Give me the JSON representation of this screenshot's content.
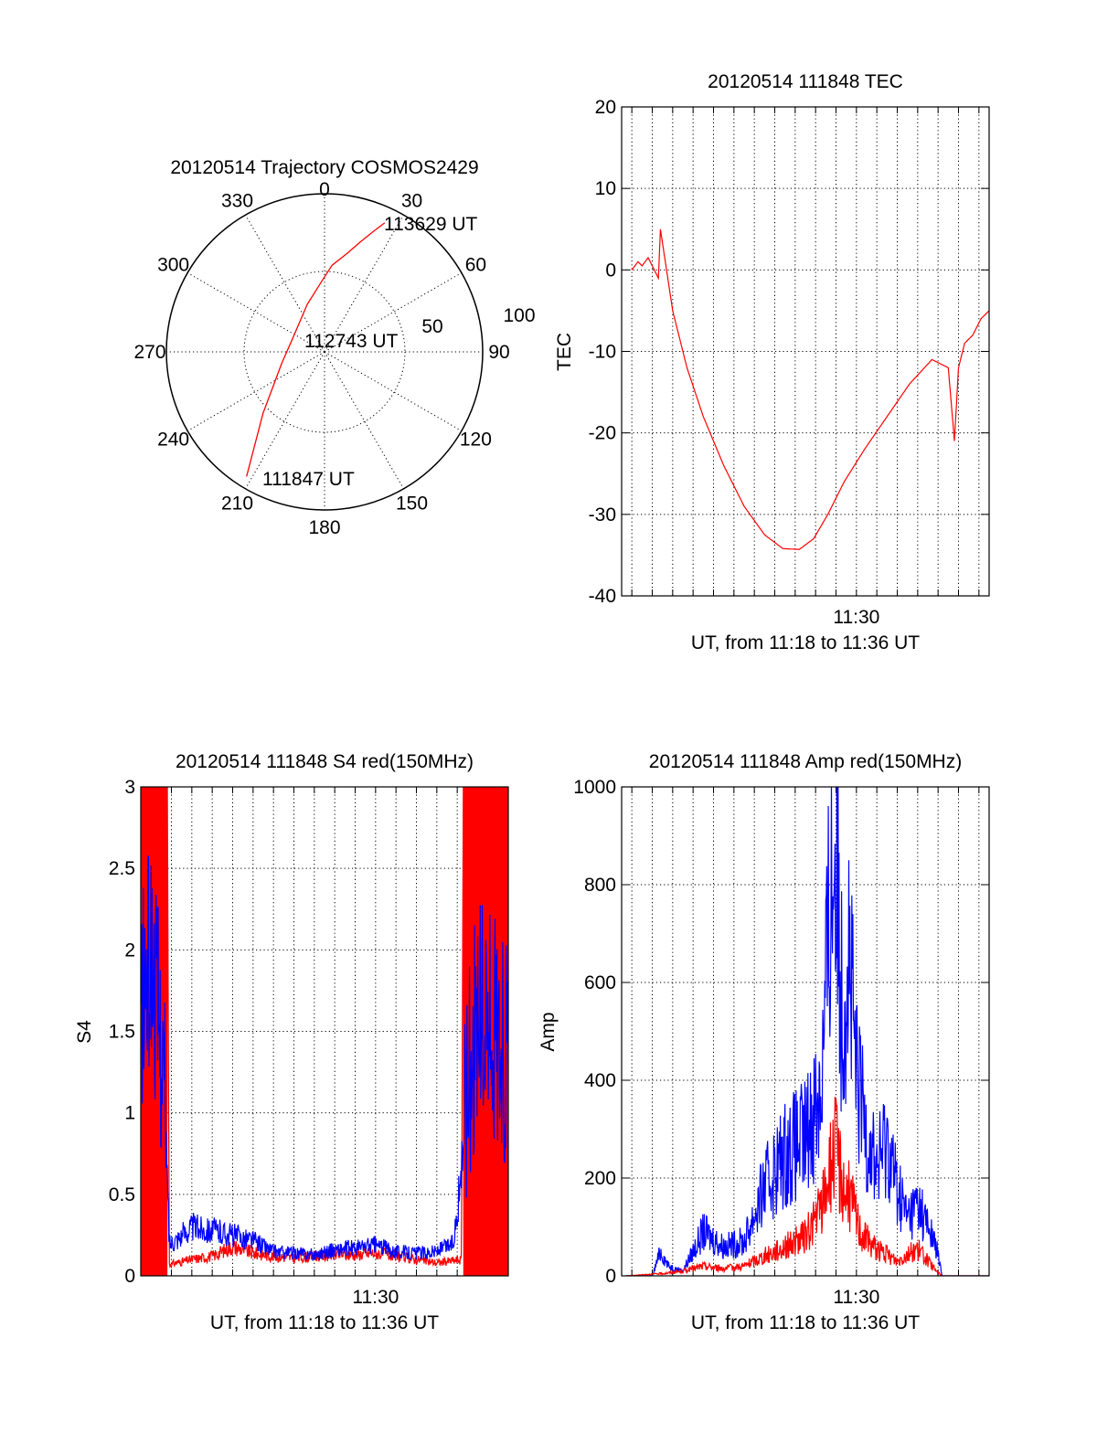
{
  "colors": {
    "red": "#ff0000",
    "blue": "#0000ff",
    "axis": "#000000"
  },
  "chart_data": [
    {
      "id": "trajectory",
      "type": "polar",
      "title": "20120514 Trajectory COSMOS2429",
      "angle_labels": [
        "0",
        "30",
        "60",
        "90",
        "120",
        "150",
        "180",
        "210",
        "240",
        "270",
        "300",
        "330"
      ],
      "angle_values": [
        0,
        30,
        60,
        90,
        120,
        150,
        180,
        210,
        240,
        270,
        300,
        330
      ],
      "radial_labels": [
        "50",
        "100"
      ],
      "radial_values": [
        50,
        100
      ],
      "point_labels": [
        "113629 UT",
        "112743 UT",
        "111847 UT"
      ],
      "series": [
        {
          "color": "#ff0000",
          "azimuth": [
            25,
            22,
            18,
            13,
            5,
            358,
            340,
            300,
            255,
            225,
            212
          ],
          "radius": [
            90,
            82,
            73,
            64,
            55,
            45,
            32,
            22,
            28,
            55,
            93
          ]
        }
      ]
    },
    {
      "id": "tec",
      "type": "line",
      "title": "20120514 111848 TEC",
      "xlabel": "UT, from 11:18 to 11:36 UT",
      "ylabel": "TEC",
      "x_tick_label": "11:30",
      "x_tick_value": 690,
      "xlim": [
        678.5,
        696.5
      ],
      "ylim": [
        -40,
        20
      ],
      "yticks": [
        "20",
        "10",
        "0",
        "-10",
        "-20",
        "-30",
        "-40"
      ],
      "ytick_values": [
        20,
        10,
        0,
        -10,
        -20,
        -30,
        -40
      ],
      "series": [
        {
          "color": "#ff0000",
          "x": [
            679.0,
            679.3,
            679.5,
            679.8,
            680.1,
            680.3,
            680.4,
            681.0,
            681.7,
            682.5,
            683.5,
            684.5,
            685.5,
            686.4,
            687.2,
            687.9,
            688.6,
            689.4,
            690.4,
            691.5,
            692.6,
            693.7,
            694.5,
            694.7,
            694.8,
            695.0,
            695.3,
            695.7,
            696.1,
            696.5
          ],
          "y": [
            0,
            1,
            0.5,
            1.5,
            0,
            -1,
            5,
            -5,
            -12,
            -18,
            -24,
            -29,
            -32.5,
            -34.2,
            -34.3,
            -33,
            -30,
            -26,
            -22,
            -18,
            -14,
            -11,
            -12,
            -18,
            -21,
            -12,
            -9,
            -8,
            -6,
            -5
          ]
        }
      ]
    },
    {
      "id": "s4",
      "type": "line",
      "title": "20120514 111848 S4 red(150MHz)",
      "xlabel": "UT, from 11:18 to 11:36 UT",
      "ylabel": "S4",
      "x_tick_label": "11:30",
      "x_tick_value": 690,
      "xlim": [
        678.5,
        696.5
      ],
      "ylim": [
        0,
        3
      ],
      "yticks": [
        "3",
        "2.5",
        "2",
        "1.5",
        "1",
        "0.5",
        "0"
      ],
      "ytick_values": [
        3,
        2.5,
        2,
        1.5,
        1,
        0.5,
        0
      ],
      "series": [
        {
          "color": "#ff0000",
          "x": [
            678.5,
            679.8,
            679.9,
            681,
            682,
            683,
            684,
            685,
            686,
            687,
            688,
            689,
            690,
            691,
            692,
            693,
            694.2,
            694.3,
            696.5
          ],
          "y": [
            3,
            3,
            0.07,
            0.1,
            0.12,
            0.18,
            0.14,
            0.12,
            0.11,
            0.12,
            0.13,
            0.13,
            0.14,
            0.12,
            0.1,
            0.08,
            0.1,
            3,
            3
          ]
        },
        {
          "color": "#0000ff",
          "x": [
            678.5,
            679.0,
            679.6,
            679.9,
            680.5,
            681,
            682,
            683,
            684,
            685,
            686,
            687,
            688,
            689,
            690,
            691,
            692,
            693,
            693.8,
            694.1,
            694.4,
            695,
            696,
            696.5
          ],
          "y": [
            1.6,
            2.0,
            1.3,
            0.2,
            0.25,
            0.3,
            0.28,
            0.25,
            0.22,
            0.15,
            0.14,
            0.13,
            0.16,
            0.17,
            0.19,
            0.15,
            0.14,
            0.15,
            0.2,
            0.5,
            1.1,
            1.6,
            1.5,
            1.3
          ]
        }
      ]
    },
    {
      "id": "amp",
      "type": "line",
      "title": "20120514 111848 Amp red(150MHz)",
      "xlabel": "UT, from 11:18 to 11:36 UT",
      "ylabel": "Amp",
      "x_tick_label": "11:30",
      "x_tick_value": 690,
      "xlim": [
        678.5,
        696.5
      ],
      "ylim": [
        0,
        1000
      ],
      "yticks": [
        "1000",
        "800",
        "600",
        "400",
        "200",
        "0"
      ],
      "ytick_values": [
        1000,
        800,
        600,
        400,
        200,
        0
      ],
      "series": [
        {
          "color": "#0000ff",
          "x": [
            678.7,
            680,
            680.4,
            680.8,
            681.5,
            682.5,
            683.5,
            684.5,
            685.5,
            686.5,
            687.5,
            688.3,
            688.7,
            689.0,
            689.3,
            689.6,
            690.0,
            690.5,
            691,
            691.5,
            692,
            692.5,
            693,
            693.5,
            693.9,
            694.2,
            696.5
          ],
          "y": [
            0,
            0,
            50,
            20,
            10,
            90,
            60,
            70,
            180,
            250,
            280,
            400,
            750,
            900,
            550,
            680,
            400,
            300,
            220,
            280,
            180,
            120,
            150,
            100,
            60,
            0,
            0
          ]
        },
        {
          "color": "#ff0000",
          "x": [
            678.7,
            680.6,
            681.5,
            682.5,
            683.5,
            684.5,
            685.5,
            686.5,
            687.5,
            688.3,
            688.7,
            689.0,
            689.4,
            689.8,
            690.2,
            690.6,
            691.2,
            692.0,
            692.5,
            693.0,
            693.5,
            693.9,
            694.2,
            696.5
          ],
          "y": [
            0,
            5,
            10,
            20,
            15,
            20,
            40,
            60,
            80,
            140,
            220,
            260,
            180,
            150,
            90,
            70,
            50,
            30,
            45,
            55,
            30,
            10,
            0,
            0
          ]
        }
      ]
    }
  ]
}
